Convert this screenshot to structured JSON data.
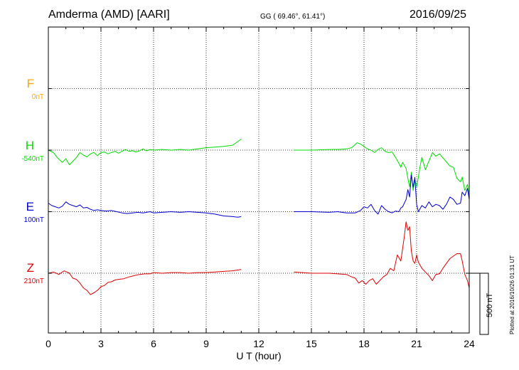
{
  "header": {
    "station": "Amderma (AMD)  [AARI]",
    "coords": "GG ( 69.46°,  61.41°)",
    "date": "2016/09/25"
  },
  "chart_data": {
    "type": "line",
    "xlabel": "U T (hour)",
    "xlim": [
      0,
      24
    ],
    "xticks": [
      "0",
      "3",
      "6",
      "9",
      "12",
      "15",
      "18",
      "21",
      "24"
    ],
    "grid": true,
    "scale_bar": {
      "value_nT": 500,
      "label": "500 nT"
    },
    "series": [
      {
        "name": "F",
        "offset_label": "0nT",
        "color": "#ffa500",
        "baseline_row": 1,
        "segments": []
      },
      {
        "name": "H",
        "offset_label": "-540nT",
        "color": "#00dd00",
        "baseline_row": 2,
        "segments": [
          [
            [
              0,
              0
            ],
            [
              0.3,
              -20
            ],
            [
              0.5,
              -60
            ],
            [
              0.8,
              -100
            ],
            [
              1,
              -70
            ],
            [
              1.2,
              -120
            ],
            [
              1.4,
              -90
            ],
            [
              1.6,
              -60
            ],
            [
              1.8,
              -20
            ],
            [
              2,
              -40
            ],
            [
              2.2,
              -55
            ],
            [
              2.4,
              -30
            ],
            [
              2.6,
              -20
            ],
            [
              2.8,
              -45
            ],
            [
              3,
              -20
            ],
            [
              3.2,
              -15
            ],
            [
              3.4,
              -30
            ],
            [
              3.6,
              -20
            ],
            [
              3.8,
              -10
            ],
            [
              4,
              -25
            ],
            [
              4.2,
              -10
            ],
            [
              4.4,
              5
            ],
            [
              4.6,
              -10
            ],
            [
              4.8,
              -5
            ],
            [
              5,
              -15
            ],
            [
              5.2,
              -5
            ],
            [
              5.4,
              10
            ],
            [
              5.6,
              -5
            ],
            [
              5.8,
              5
            ],
            [
              6,
              0
            ],
            [
              6.5,
              5
            ],
            [
              7,
              0
            ],
            [
              7.5,
              5
            ],
            [
              8,
              0
            ],
            [
              8.5,
              10
            ],
            [
              9,
              20
            ],
            [
              9.5,
              25
            ],
            [
              10,
              30
            ],
            [
              10.5,
              40
            ],
            [
              10.8,
              70
            ],
            [
              11,
              90
            ]
          ],
          [
            [
              14,
              0
            ],
            [
              15,
              0
            ],
            [
              16,
              5
            ],
            [
              16.5,
              5
            ],
            [
              17,
              10
            ],
            [
              17.3,
              20
            ],
            [
              17.6,
              60
            ],
            [
              17.8,
              50
            ],
            [
              18,
              30
            ],
            [
              18.2,
              10
            ],
            [
              18.4,
              0
            ],
            [
              18.6,
              -20
            ],
            [
              18.8,
              5
            ],
            [
              19,
              20
            ],
            [
              19.2,
              -10
            ],
            [
              19.4,
              -20
            ],
            [
              19.6,
              -15
            ],
            [
              19.8,
              -60
            ],
            [
              20,
              -110
            ],
            [
              20.1,
              -140
            ],
            [
              20.2,
              -100
            ],
            [
              20.4,
              -150
            ],
            [
              20.5,
              -230
            ],
            [
              20.6,
              -300
            ],
            [
              20.7,
              -180
            ],
            [
              20.8,
              -330
            ],
            [
              20.9,
              -240
            ],
            [
              21,
              -300
            ],
            [
              21.1,
              -220
            ],
            [
              21.2,
              -130
            ],
            [
              21.3,
              -60
            ],
            [
              21.5,
              -160
            ],
            [
              21.7,
              -90
            ],
            [
              21.9,
              -20
            ],
            [
              22.1,
              -50
            ],
            [
              22.3,
              -30
            ],
            [
              22.6,
              -80
            ],
            [
              22.9,
              -130
            ],
            [
              23.1,
              -140
            ],
            [
              23.3,
              -230
            ],
            [
              23.5,
              -260
            ],
            [
              23.6,
              -220
            ],
            [
              23.75,
              -330
            ],
            [
              23.9,
              -280
            ],
            [
              24,
              -380
            ]
          ]
        ]
      },
      {
        "name": "E",
        "offset_label": "100nT",
        "color": "#0000cc",
        "baseline_row": 3,
        "segments": [
          [
            [
              0,
              70
            ],
            [
              0.2,
              50
            ],
            [
              0.4,
              40
            ],
            [
              0.6,
              30
            ],
            [
              0.8,
              45
            ],
            [
              1,
              80
            ],
            [
              1.2,
              60
            ],
            [
              1.4,
              50
            ],
            [
              1.6,
              40
            ],
            [
              1.8,
              55
            ],
            [
              2,
              30
            ],
            [
              2.2,
              35
            ],
            [
              2.4,
              20
            ],
            [
              2.6,
              10
            ],
            [
              2.8,
              15
            ],
            [
              3,
              10
            ],
            [
              3.3,
              5
            ],
            [
              3.6,
              10
            ],
            [
              3.9,
              0
            ],
            [
              4.2,
              -10
            ],
            [
              4.5,
              -15
            ],
            [
              4.8,
              -10
            ],
            [
              5.1,
              -5
            ],
            [
              5.4,
              -10
            ],
            [
              5.8,
              0
            ],
            [
              6,
              -10
            ],
            [
              6.5,
              -5
            ],
            [
              7,
              0
            ],
            [
              7.5,
              -5
            ],
            [
              8,
              0
            ],
            [
              8.5,
              -5
            ],
            [
              9,
              -10
            ],
            [
              9.5,
              -20
            ],
            [
              10,
              -35
            ],
            [
              10.5,
              -40
            ],
            [
              10.8,
              -45
            ],
            [
              11,
              -40
            ]
          ],
          [
            [
              14,
              0
            ],
            [
              15,
              0
            ],
            [
              16,
              -5
            ],
            [
              16.5,
              0
            ],
            [
              17,
              -10
            ],
            [
              17.5,
              -10
            ],
            [
              17.8,
              10
            ],
            [
              18,
              40
            ],
            [
              18.2,
              30
            ],
            [
              18.4,
              60
            ],
            [
              18.6,
              10
            ],
            [
              18.8,
              -20
            ],
            [
              19,
              50
            ],
            [
              19.2,
              20
            ],
            [
              19.4,
              0
            ],
            [
              19.6,
              -10
            ],
            [
              19.8,
              5
            ],
            [
              20,
              0
            ],
            [
              20.1,
              30
            ],
            [
              20.2,
              40
            ],
            [
              20.4,
              100
            ],
            [
              20.5,
              180
            ],
            [
              20.6,
              120
            ],
            [
              20.7,
              300
            ],
            [
              20.8,
              200
            ],
            [
              20.9,
              280
            ],
            [
              21,
              60
            ],
            [
              21.1,
              0
            ],
            [
              21.3,
              50
            ],
            [
              21.5,
              30
            ],
            [
              21.7,
              80
            ],
            [
              21.9,
              40
            ],
            [
              22.1,
              60
            ],
            [
              22.3,
              50
            ],
            [
              22.5,
              20
            ],
            [
              22.7,
              60
            ],
            [
              22.9,
              120
            ],
            [
              23.1,
              100
            ],
            [
              23.3,
              60
            ],
            [
              23.5,
              70
            ],
            [
              23.6,
              160
            ],
            [
              23.75,
              130
            ],
            [
              23.9,
              190
            ],
            [
              24,
              100
            ]
          ]
        ]
      },
      {
        "name": "Z",
        "offset_label": "210nT",
        "color": "#dd0000",
        "baseline_row": 4,
        "segments": [
          [
            [
              0,
              0
            ],
            [
              0.3,
              10
            ],
            [
              0.6,
              -10
            ],
            [
              0.9,
              20
            ],
            [
              1.2,
              0
            ],
            [
              1.4,
              -40
            ],
            [
              1.6,
              -50
            ],
            [
              1.8,
              -80
            ],
            [
              2,
              -120
            ],
            [
              2.2,
              -140
            ],
            [
              2.4,
              -175
            ],
            [
              2.6,
              -160
            ],
            [
              2.8,
              -140
            ],
            [
              3,
              -110
            ],
            [
              3.2,
              -100
            ],
            [
              3.4,
              -75
            ],
            [
              3.6,
              -70
            ],
            [
              3.8,
              -55
            ],
            [
              4,
              -50
            ],
            [
              4.3,
              -45
            ],
            [
              4.6,
              -30
            ],
            [
              4.9,
              -20
            ],
            [
              5.2,
              -10
            ],
            [
              5.5,
              -5
            ],
            [
              5.8,
              -5
            ],
            [
              6,
              5
            ],
            [
              6.5,
              0
            ],
            [
              7,
              5
            ],
            [
              7.5,
              5
            ],
            [
              8,
              0
            ],
            [
              8.5,
              5
            ],
            [
              9,
              5
            ],
            [
              9.5,
              10
            ],
            [
              10,
              15
            ],
            [
              10.5,
              20
            ],
            [
              11,
              30
            ]
          ],
          [
            [
              14,
              10
            ],
            [
              15,
              0
            ],
            [
              16,
              0
            ],
            [
              16.5,
              -5
            ],
            [
              17,
              -10
            ],
            [
              17.3,
              -30
            ],
            [
              17.5,
              -40
            ],
            [
              17.7,
              -80
            ],
            [
              17.9,
              -60
            ],
            [
              18.1,
              -90
            ],
            [
              18.3,
              -60
            ],
            [
              18.5,
              -45
            ],
            [
              18.7,
              -90
            ],
            [
              18.9,
              -60
            ],
            [
              19.1,
              -30
            ],
            [
              19.3,
              -10
            ],
            [
              19.5,
              40
            ],
            [
              19.7,
              20
            ],
            [
              19.9,
              150
            ],
            [
              20.1,
              100
            ],
            [
              20.3,
              300
            ],
            [
              20.4,
              420
            ],
            [
              20.5,
              350
            ],
            [
              20.6,
              380
            ],
            [
              20.7,
              180
            ],
            [
              20.8,
              100
            ],
            [
              20.9,
              80
            ],
            [
              21,
              150
            ],
            [
              21.1,
              90
            ],
            [
              21.3,
              40
            ],
            [
              21.5,
              10
            ],
            [
              21.7,
              -20
            ],
            [
              21.9,
              -60
            ],
            [
              22.1,
              -10
            ],
            [
              22.3,
              -5
            ],
            [
              22.5,
              40
            ],
            [
              22.7,
              80
            ],
            [
              22.9,
              120
            ],
            [
              23.1,
              140
            ],
            [
              23.3,
              160
            ],
            [
              23.5,
              160
            ],
            [
              23.6,
              100
            ],
            [
              23.75,
              -10
            ],
            [
              23.9,
              -60
            ],
            [
              24,
              -120
            ]
          ]
        ]
      }
    ]
  },
  "plotted_note": "Plotted at 2016/10/26 01:31 UT"
}
